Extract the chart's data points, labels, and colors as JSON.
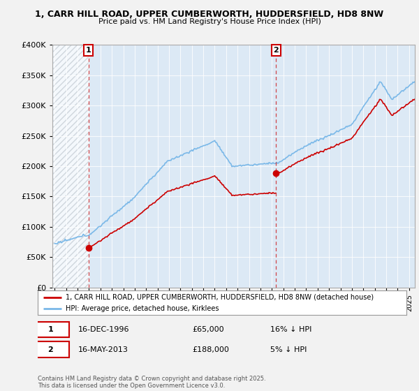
{
  "title1": "1, CARR HILL ROAD, UPPER CUMBERWORTH, HUDDERSFIELD, HD8 8NW",
  "title2": "Price paid vs. HM Land Registry's House Price Index (HPI)",
  "ylim": [
    0,
    400000
  ],
  "yticks": [
    0,
    50000,
    100000,
    150000,
    200000,
    250000,
    300000,
    350000,
    400000
  ],
  "ytick_labels": [
    "£0",
    "£50K",
    "£100K",
    "£150K",
    "£200K",
    "£250K",
    "£300K",
    "£350K",
    "£400K"
  ],
  "sale1_date": 1996.96,
  "sale1_price": 65000,
  "sale1_label": "1",
  "sale2_date": 2013.37,
  "sale2_price": 188000,
  "sale2_label": "2",
  "hpi_color": "#7ab8e8",
  "price_color": "#cc0000",
  "background_color": "#f2f2f2",
  "plot_bg_color": "#dce9f5",
  "hatch_color": "#c0c8d0",
  "legend_label_price": "1, CARR HILL ROAD, UPPER CUMBERWORTH, HUDDERSFIELD, HD8 8NW (detached house)",
  "legend_label_hpi": "HPI: Average price, detached house, Kirklees",
  "footer": "Contains HM Land Registry data © Crown copyright and database right 2025.\nThis data is licensed under the Open Government Licence v3.0.",
  "xstart": 1993.8,
  "xend": 2025.5
}
